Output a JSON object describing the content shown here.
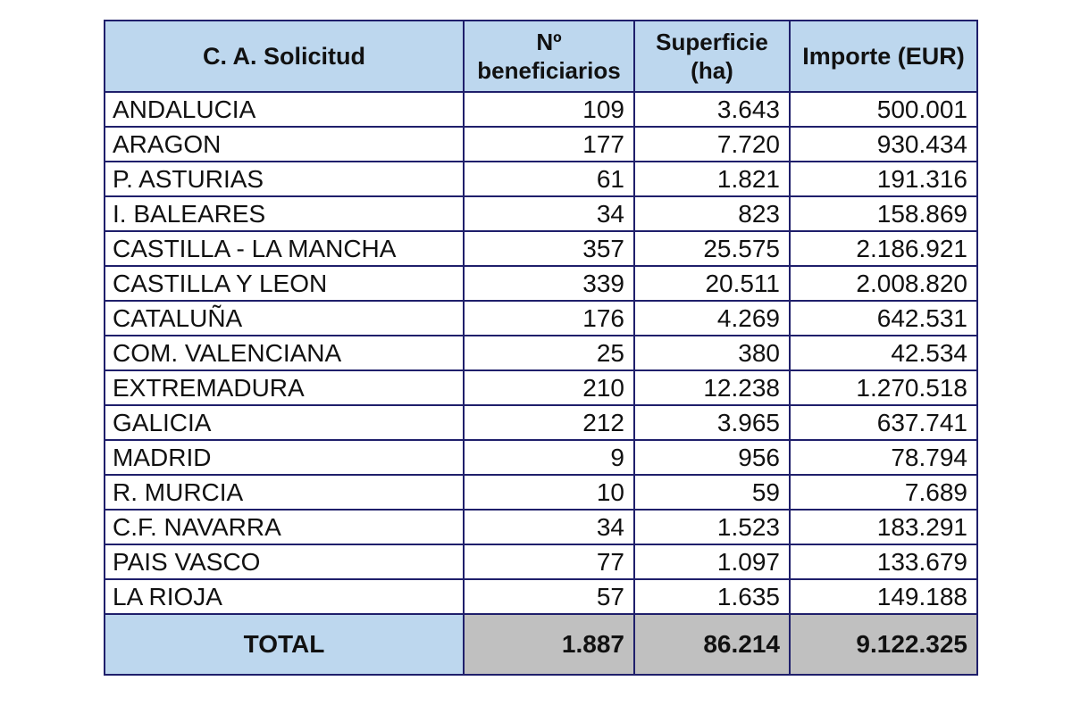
{
  "headers": {
    "region": "C. A. Solicitud",
    "beneficiarios_line1": "Nº",
    "beneficiarios_line2": "beneficiarios",
    "superficie_line1": "Superficie",
    "superficie_line2": "(ha)",
    "importe": "Importe (EUR)"
  },
  "rows": [
    {
      "region": "ANDALUCIA",
      "beneficiarios": "109",
      "superficie": "3.643",
      "importe": "500.001"
    },
    {
      "region": "ARAGON",
      "beneficiarios": "177",
      "superficie": "7.720",
      "importe": "930.434"
    },
    {
      "region": "P. ASTURIAS",
      "beneficiarios": "61",
      "superficie": "1.821",
      "importe": "191.316"
    },
    {
      "region": "I. BALEARES",
      "beneficiarios": "34",
      "superficie": "823",
      "importe": "158.869"
    },
    {
      "region": "CASTILLA - LA MANCHA",
      "beneficiarios": "357",
      "superficie": "25.575",
      "importe": "2.186.921"
    },
    {
      "region": "CASTILLA Y LEON",
      "beneficiarios": "339",
      "superficie": "20.511",
      "importe": "2.008.820"
    },
    {
      "region": "CATALUÑA",
      "beneficiarios": "176",
      "superficie": "4.269",
      "importe": "642.531"
    },
    {
      "region": "COM. VALENCIANA",
      "beneficiarios": "25",
      "superficie": "380",
      "importe": "42.534"
    },
    {
      "region": "EXTREMADURA",
      "beneficiarios": "210",
      "superficie": "12.238",
      "importe": "1.270.518"
    },
    {
      "region": "GALICIA",
      "beneficiarios": "212",
      "superficie": "3.965",
      "importe": "637.741"
    },
    {
      "region": "MADRID",
      "beneficiarios": "9",
      "superficie": "956",
      "importe": "78.794"
    },
    {
      "region": "R. MURCIA",
      "beneficiarios": "10",
      "superficie": "59",
      "importe": "7.689"
    },
    {
      "region": "C.F. NAVARRA",
      "beneficiarios": "34",
      "superficie": "1.523",
      "importe": "183.291"
    },
    {
      "region": "PAIS VASCO",
      "beneficiarios": "77",
      "superficie": "1.097",
      "importe": "133.679"
    },
    {
      "region": "LA RIOJA",
      "beneficiarios": "57",
      "superficie": "1.635",
      "importe": "149.188"
    }
  ],
  "total": {
    "label": "TOTAL",
    "beneficiarios": "1.887",
    "superficie": "86.214",
    "importe": "9.122.325"
  },
  "colors": {
    "header_bg": "#bdd7ee",
    "total_bg": "#c0c0c0",
    "border": "#1f1f6b"
  }
}
